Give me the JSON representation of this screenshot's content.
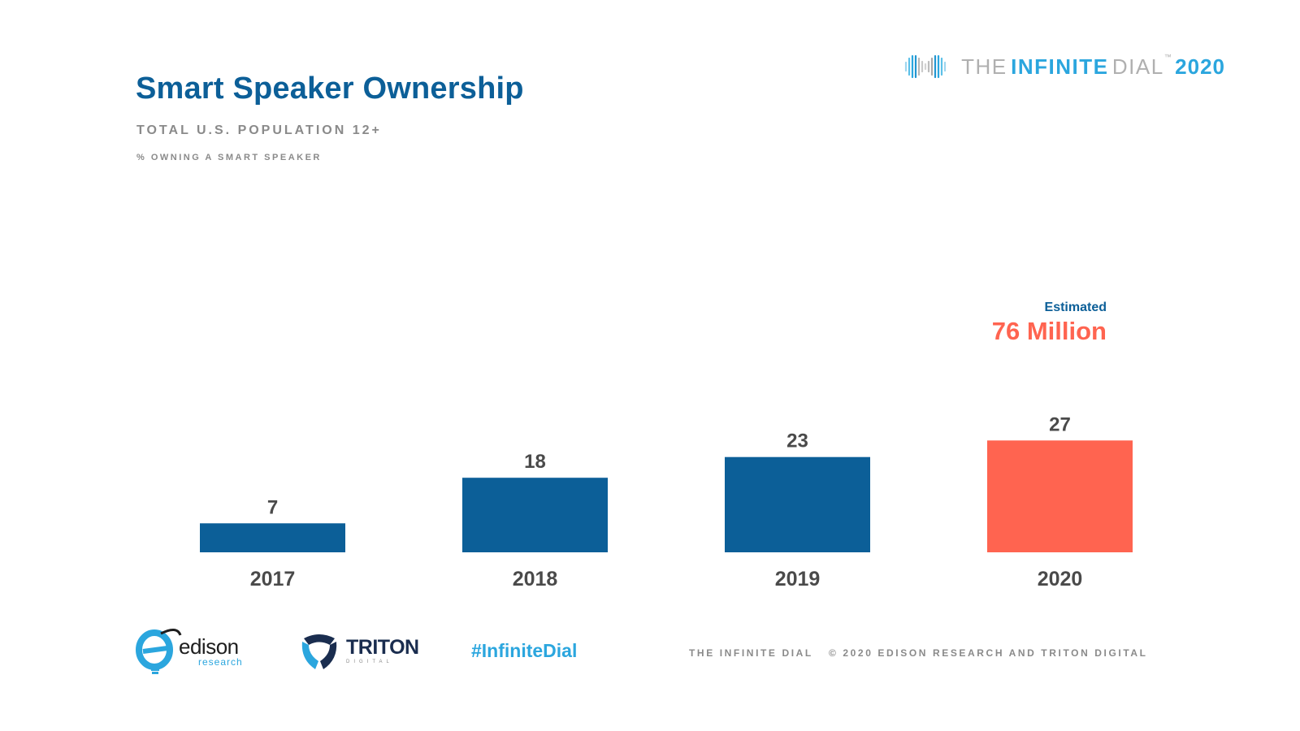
{
  "header": {
    "title": "Smart Speaker Ownership",
    "subtitle": "TOTAL U.S. POPULATION 12+",
    "caption": "% OWNING A SMART SPEAKER"
  },
  "brand": {
    "the": "THE",
    "infinite": "INFINITE",
    "dial": "DIAL",
    "year": "2020",
    "icon": "infinite-dial-logo-icon"
  },
  "annotation": {
    "label": "Estimated",
    "value": "76 Million"
  },
  "chart_data": {
    "type": "bar",
    "title": "Smart Speaker Ownership",
    "subtitle": "TOTAL U.S. POPULATION 12+",
    "ylabel": "% OWNING A SMART SPEAKER",
    "xlabel": "",
    "categories": [
      "2017",
      "2018",
      "2019",
      "2020"
    ],
    "values": [
      7,
      18,
      23,
      27
    ],
    "colors": [
      "#0c5f98",
      "#0c5f98",
      "#0c5f98",
      "#ff6450"
    ],
    "ylim": [
      0,
      30
    ],
    "grid": false,
    "legend": "none",
    "annotations": [
      {
        "category": "2020",
        "text": "Estimated 76 Million"
      }
    ]
  },
  "footer": {
    "edison_name": "edison",
    "edison_sub": "research",
    "triton_name": "TRITON",
    "triton_sub": "DIGITAL",
    "hashtag": "#InfiniteDial",
    "left_text": "THE INFINITE DIAL",
    "right_text": "© 2020 EDISON RESEARCH AND TRITON DIGITAL"
  },
  "colors": {
    "primary": "#0c5f98",
    "accent": "#ff6450",
    "brand_blue": "#2ba6de",
    "text_gray": "#8a8a8a"
  }
}
